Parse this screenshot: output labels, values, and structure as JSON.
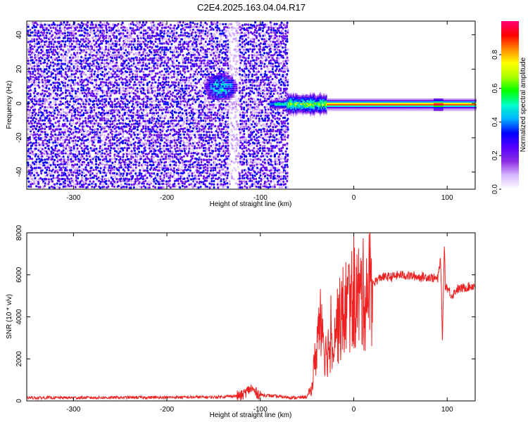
{
  "chart_data": [
    {
      "type": "heatmap",
      "title": "C2E4.2025.163.04.04.R17",
      "xlabel": "Height of straight line (km)",
      "ylabel": "Frequency (Hz)",
      "xlim": [
        -350,
        130
      ],
      "ylim": [
        -50,
        48
      ],
      "xticks": [
        -300,
        -200,
        -100,
        0,
        100
      ],
      "yticks": [
        40,
        20,
        0,
        -20,
        -40
      ],
      "colorbar": {
        "label": "Normalized spectral amplitude",
        "range": [
          0.0,
          1.0
        ],
        "ticks": [
          0.0,
          0.2,
          0.4,
          0.6,
          0.8
        ],
        "tick_labels": [
          "0.0",
          "0.2",
          "0.4",
          "0.6",
          "0.8"
        ],
        "colors": [
          "#ffffff",
          "#d8b8ff",
          "#8a2be2",
          "#5500ff",
          "#0000ff",
          "#00b0ff",
          "#00ffcc",
          "#00ff00",
          "#aaff00",
          "#ffff00",
          "#ff8800",
          "#ff0000",
          "#ff0077"
        ]
      },
      "regions": [
        {
          "name": "noise-field",
          "x": [
            -350,
            -72
          ],
          "y": [
            -50,
            48
          ],
          "amplitude": 0.15
        },
        {
          "name": "noise-gap",
          "x": [
            -135,
            -125
          ],
          "y": [
            -50,
            48
          ],
          "amplitude": 0.02
        },
        {
          "name": "blob",
          "x": [
            -160,
            -125
          ],
          "y": [
            2,
            18
          ],
          "center": [
            -143,
            10
          ],
          "amplitude": 0.45
        },
        {
          "name": "signal-band",
          "x": [
            -90,
            130
          ],
          "center_y": 0,
          "amplitude": 0.9
        }
      ]
    },
    {
      "type": "line",
      "xlabel": "Height of straight line (km)",
      "ylabel": "SNR (10 * v/v)",
      "xlim": [
        -350,
        130
      ],
      "ylim": [
        0,
        8000
      ],
      "xticks": [
        -300,
        -200,
        -100,
        0,
        100
      ],
      "yticks": [
        0,
        2000,
        4000,
        6000,
        8000
      ],
      "color": "#ee2222",
      "series": [
        {
          "x": [
            -350,
            -300,
            -250,
            -200,
            -150,
            -120,
            -110,
            -105,
            -100,
            -90,
            -80,
            -60,
            -50,
            -45,
            -40,
            -35,
            -33,
            -30,
            -25,
            -20,
            -15,
            -10,
            -5,
            0,
            10,
            20,
            30,
            40,
            50,
            60,
            70,
            80,
            90,
            93,
            95,
            97,
            98,
            100,
            105,
            110,
            120,
            130
          ],
          "y": [
            150,
            150,
            160,
            170,
            180,
            250,
            600,
            400,
            300,
            250,
            200,
            150,
            200,
            600,
            2500,
            4500,
            3500,
            2200,
            2800,
            3600,
            3800,
            4400,
            4700,
            4900,
            5000,
            5600,
            5900,
            5900,
            6000,
            5950,
            5900,
            5900,
            5800,
            6800,
            2800,
            7600,
            5500,
            5400,
            5000,
            5300,
            5400,
            5500
          ]
        }
      ]
    }
  ]
}
